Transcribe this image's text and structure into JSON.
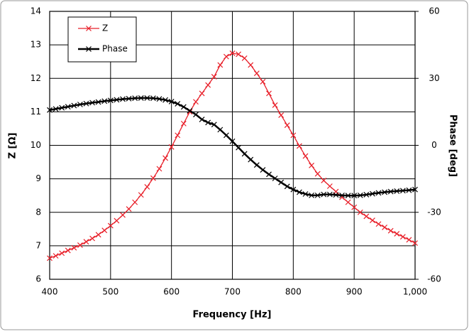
{
  "chart_data": {
    "type": "line",
    "x_label": "Frequency [Hz]",
    "y_label": "Z [Ω]",
    "y2_label": "Phase [deg]",
    "x": [
      400,
      410,
      420,
      430,
      440,
      450,
      460,
      470,
      480,
      490,
      500,
      510,
      520,
      530,
      540,
      550,
      560,
      570,
      580,
      590,
      600,
      610,
      620,
      630,
      640,
      650,
      660,
      670,
      680,
      690,
      700,
      710,
      720,
      730,
      740,
      750,
      760,
      770,
      780,
      790,
      800,
      810,
      820,
      830,
      840,
      850,
      860,
      870,
      880,
      890,
      900,
      910,
      920,
      930,
      940,
      950,
      960,
      970,
      980,
      990,
      1000
    ],
    "series": [
      {
        "name": "Z",
        "color": "#e8202a",
        "values": [
          6.63,
          6.7,
          6.78,
          6.86,
          6.94,
          7.02,
          7.12,
          7.22,
          7.33,
          7.46,
          7.6,
          7.75,
          7.92,
          8.1,
          8.3,
          8.52,
          8.76,
          9.02,
          9.3,
          9.62,
          9.95,
          10.3,
          10.65,
          11.0,
          11.3,
          11.55,
          11.8,
          12.05,
          12.4,
          12.65,
          12.75,
          12.72,
          12.6,
          12.4,
          12.15,
          11.9,
          11.55,
          11.2,
          10.9,
          10.6,
          10.3,
          9.98,
          9.68,
          9.4,
          9.15,
          8.95,
          8.78,
          8.62,
          8.45,
          8.3,
          8.15,
          8.0,
          7.88,
          7.76,
          7.65,
          7.55,
          7.45,
          7.36,
          7.27,
          7.18,
          7.08
        ]
      },
      {
        "name": "Phase",
        "color": "#000000",
        "axis": "y2",
        "values": [
          15.8,
          16.3,
          16.8,
          17.3,
          17.8,
          18.3,
          18.7,
          19.1,
          19.4,
          19.8,
          20.1,
          20.4,
          20.7,
          20.9,
          21.1,
          21.2,
          21.2,
          21.1,
          20.8,
          20.3,
          19.6,
          18.6,
          17.2,
          15.5,
          13.8,
          11.6,
          10.2,
          9.3,
          7,
          4.5,
          1.8,
          -1,
          -3.8,
          -6.4,
          -8.8,
          -11,
          -13,
          -14.8,
          -16.6,
          -18.4,
          -19.8,
          -21,
          -21.8,
          -22.4,
          -22.4,
          -22,
          -22,
          -22.2,
          -22.4,
          -22.5,
          -22.5,
          -22.4,
          -22.1,
          -21.7,
          -21.3,
          -21,
          -20.7,
          -20.5,
          -20.3,
          -20.1,
          -19.8
        ]
      }
    ],
    "xlim": [
      400,
      1000
    ],
    "xticks": [
      400,
      500,
      600,
      700,
      800,
      900,
      {
        "value": 1000,
        "label": "1,000"
      }
    ],
    "ylim": [
      6,
      14
    ],
    "yticks": [
      6,
      7,
      8,
      9,
      10,
      11,
      12,
      13,
      14
    ],
    "y2lim": [
      -60,
      60
    ],
    "y2ticks": [
      -60,
      -30,
      0,
      30,
      60
    ],
    "grid": true,
    "legend": "upper left"
  }
}
